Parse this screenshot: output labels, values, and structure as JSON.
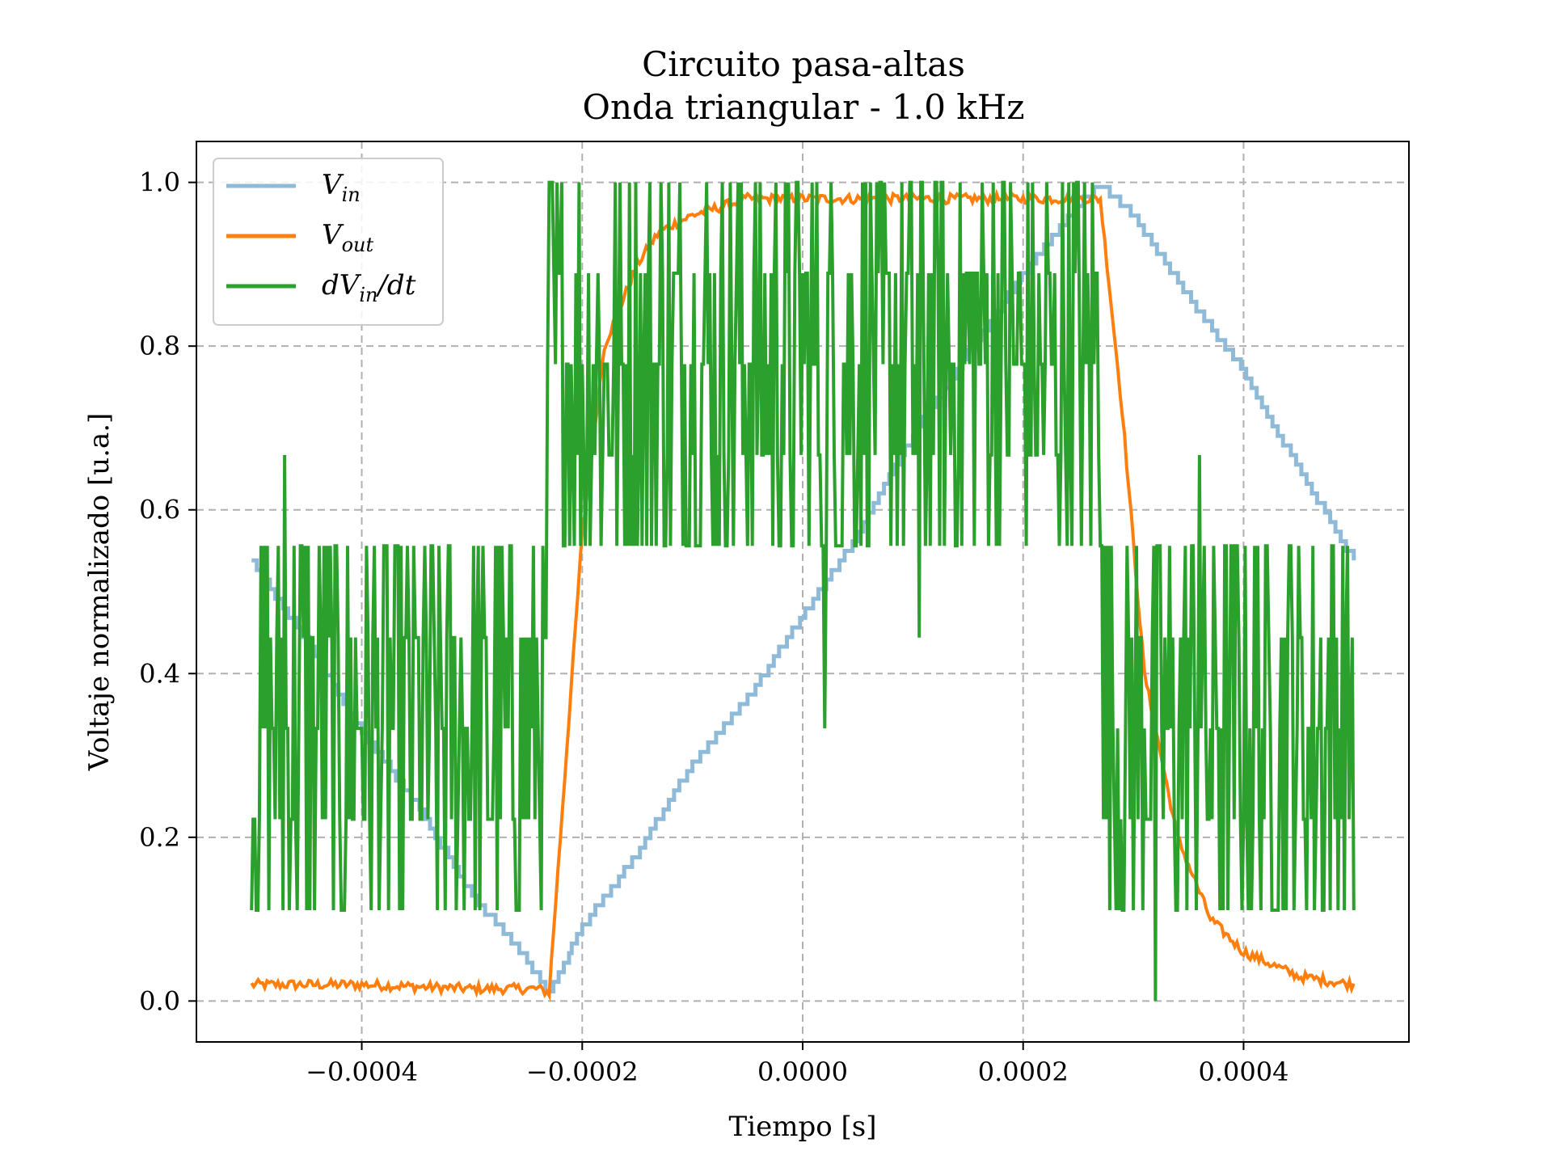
{
  "chart_data": {
    "type": "line",
    "title": "Circuito pasa-altas",
    "subtitle": "Onda triangular - 1.0 kHz",
    "xlabel": "Tiempo [s]",
    "ylabel": "Voltaje normalizado [u.a.]",
    "xlim": [
      -0.00055,
      0.00055
    ],
    "ylim": [
      -0.05,
      1.05
    ],
    "x_ticks": [
      -0.0004,
      -0.0002,
      0.0,
      0.0002,
      0.0004
    ],
    "x_tick_labels": [
      "−0.0004",
      "−0.0002",
      "0.0000",
      "0.0002",
      "0.0004"
    ],
    "y_ticks": [
      0.0,
      0.2,
      0.4,
      0.6,
      0.8,
      1.0
    ],
    "y_tick_labels": [
      "0.0",
      "0.2",
      "0.4",
      "0.6",
      "0.8",
      "1.0"
    ],
    "grid": true,
    "legend_position": "top-left",
    "legend": [
      {
        "main": "V",
        "sub": "in",
        "suffix": ""
      },
      {
        "main": "V",
        "sub": "out",
        "suffix": ""
      },
      {
        "main": "dV",
        "sub": "in",
        "suffix": "/dt"
      }
    ],
    "series": [
      {
        "key": "vin",
        "color": "#8fbbd9",
        "x": [
          -0.0005,
          -0.00045,
          -0.0004,
          -0.00035,
          -0.0003,
          -0.00025,
          -0.00023,
          -0.0002,
          -0.00015,
          -0.0001,
          -5e-05,
          0.0,
          5e-05,
          0.0001,
          0.00015,
          0.0002,
          0.00025,
          0.00027,
          0.0003,
          0.00035,
          0.0004,
          0.00045,
          0.0005
        ],
        "y": [
          0.54,
          0.44,
          0.33,
          0.24,
          0.13,
          0.05,
          0.01,
          0.09,
          0.18,
          0.29,
          0.37,
          0.47,
          0.57,
          0.69,
          0.79,
          0.89,
          0.97,
          1.0,
          0.96,
          0.86,
          0.77,
          0.65,
          0.54
        ]
      },
      {
        "key": "vout",
        "color": "#ff7f0e",
        "x": [
          -0.0005,
          -0.0004,
          -0.0003,
          -0.00024,
          -0.00023,
          -0.0002,
          -0.00018,
          -0.00015,
          -0.00013,
          -0.0001,
          -5e-05,
          0.0,
          0.0001,
          0.00027,
          0.00029,
          0.00031,
          0.00034,
          0.00037,
          0.0004,
          0.00045,
          0.0005
        ],
        "y": [
          0.02,
          0.02,
          0.015,
          0.015,
          0.01,
          0.57,
          0.8,
          0.9,
          0.94,
          0.96,
          0.98,
          0.98,
          0.98,
          0.98,
          0.72,
          0.4,
          0.2,
          0.1,
          0.06,
          0.03,
          0.02
        ]
      },
      {
        "key": "dvin",
        "color": "#2ca02c",
        "x_start": -0.0005,
        "x_end": 0.0005,
        "levels_low": [
          0.111,
          0.222,
          0.333,
          0.444,
          0.556
        ],
        "levels_high": [
          0.556,
          0.667,
          0.778,
          0.889,
          1.0
        ],
        "spikes": [
          {
            "x": -0.00047,
            "y": 0.667
          },
          {
            "x": 2e-05,
            "y": 0.333
          },
          {
            "x": 0.000105,
            "y": 0.444
          },
          {
            "x": 0.00032,
            "y": 0.0
          },
          {
            "x": 0.00036,
            "y": 0.667
          }
        ]
      }
    ]
  }
}
